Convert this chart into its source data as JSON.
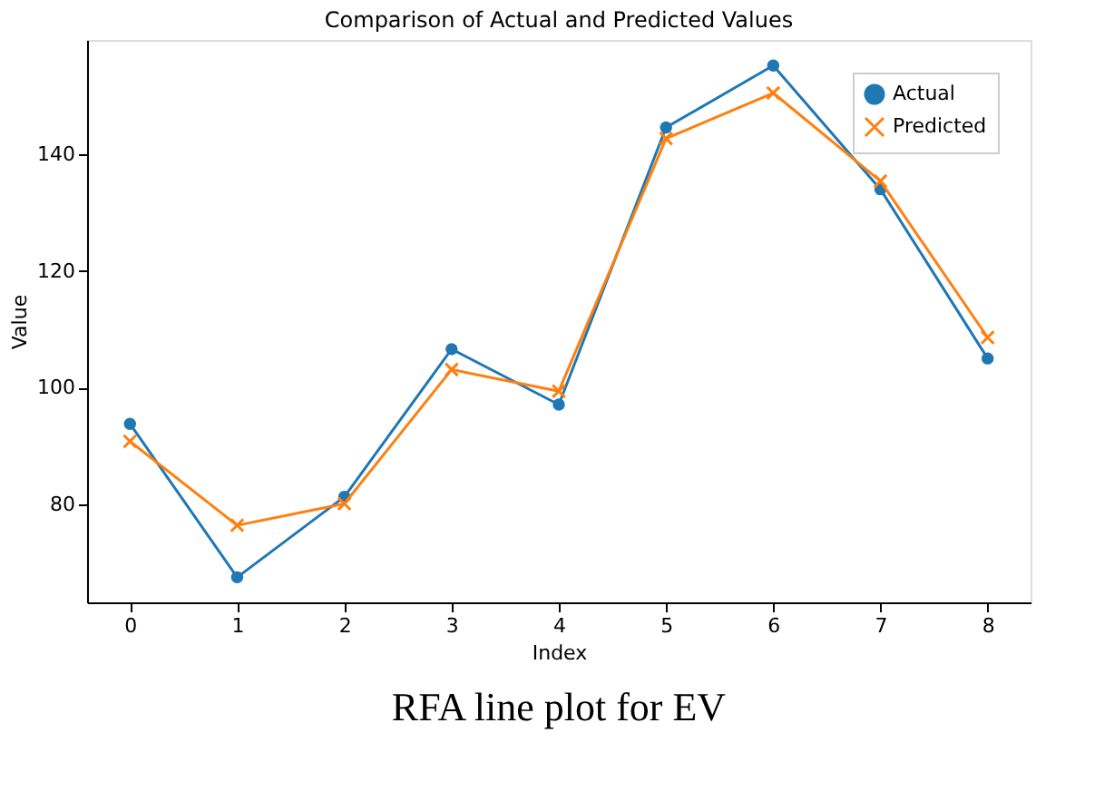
{
  "chart_data": {
    "type": "line",
    "title": "Comparison of Actual and Predicted Values",
    "xlabel": "Index",
    "ylabel": "Value",
    "x": [
      0,
      1,
      2,
      3,
      4,
      5,
      6,
      7,
      8
    ],
    "series": [
      {
        "name": "Actual",
        "color": "#1f77b4",
        "marker": "circle",
        "values": [
          93.8,
          67.5,
          81.3,
          106.6,
          97.1,
          144.6,
          155.2,
          134.0,
          105.0
        ]
      },
      {
        "name": "Predicted",
        "color": "#ff7f0e",
        "marker": "cross",
        "values": [
          90.8,
          76.4,
          80.1,
          103.1,
          99.4,
          142.7,
          150.5,
          135.4,
          108.6
        ]
      }
    ],
    "xlim": [
      -0.4,
      8.4
    ],
    "xticks": [
      0,
      1,
      2,
      3,
      4,
      5,
      6,
      7,
      8
    ],
    "ylim": [
      63.2,
      159.6
    ],
    "yticks": [
      80,
      100,
      120,
      140
    ],
    "grid": false,
    "legend": "top right",
    "line_style": "solid",
    "annotations": [
      "RFA line plot for EV"
    ]
  }
}
